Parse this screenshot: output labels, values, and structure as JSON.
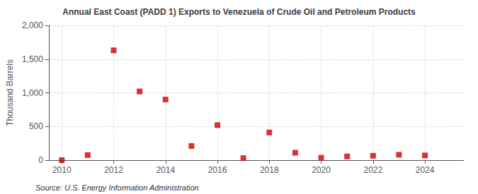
{
  "chart_data": {
    "type": "scatter",
    "title": "Annual East Coast (PADD 1) Exports to Venezuela of Crude Oil and Petroleum Products",
    "ylabel": "Thousand Barrels",
    "annotations": [
      "Source: U.S. Energy Information Administration"
    ],
    "x": [
      2010,
      2011,
      2012,
      2013,
      2014,
      2015,
      2016,
      2017,
      2018,
      2019,
      2020,
      2021,
      2022,
      2023,
      2024
    ],
    "values": [
      0,
      75,
      1630,
      1020,
      900,
      210,
      520,
      30,
      410,
      110,
      35,
      55,
      65,
      80,
      70
    ],
    "color": "#cc0000",
    "marker": "square",
    "xlim": [
      2009.5,
      2025.5
    ],
    "xticks": [
      2010,
      2012,
      2014,
      2016,
      2018,
      2020,
      2022,
      2024
    ],
    "ylim": [
      0,
      2000
    ],
    "yticks": [
      0,
      500,
      {
        "value": 1000,
        "label": "1,000"
      },
      {
        "value": 1500,
        "label": "1,500"
      },
      {
        "value": 2000,
        "label": "2,000"
      }
    ],
    "grid": true
  }
}
